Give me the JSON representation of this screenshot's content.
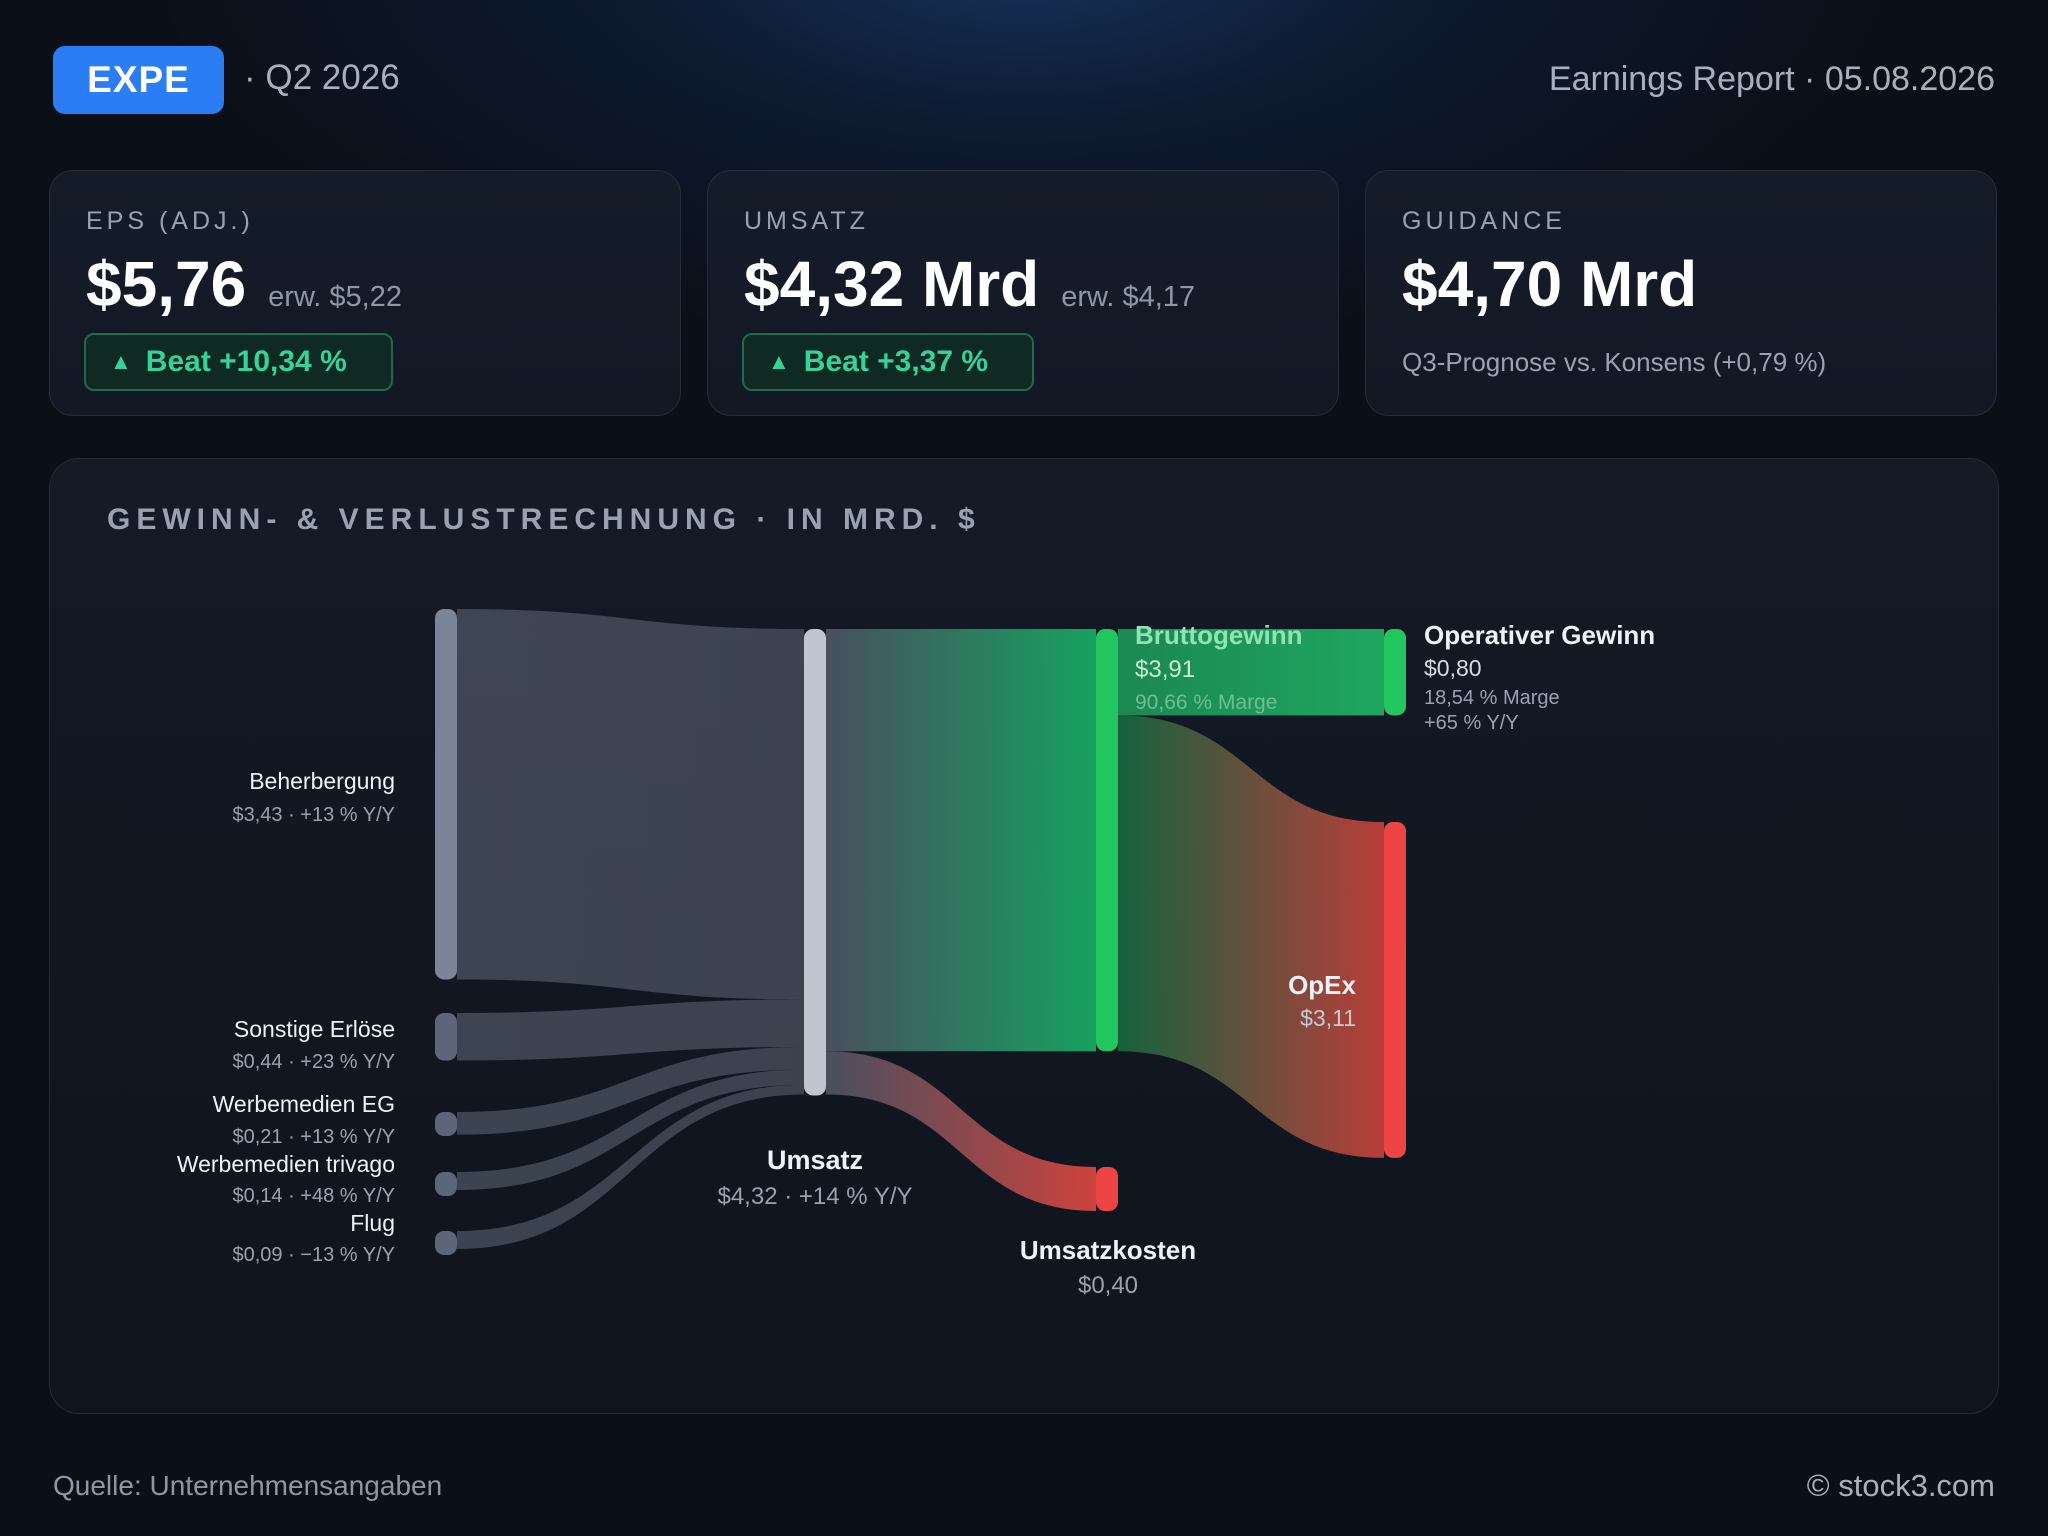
{
  "header": {
    "ticker": "EXPE",
    "quarter": "· Q2 2026",
    "report": "Earnings Report · 05.08.2026"
  },
  "cards": {
    "eps": {
      "label": "EPS (ADJ.)",
      "value": "$5,76",
      "expected": "erw. $5,22",
      "badge": "Beat +10,34 %"
    },
    "revenue": {
      "label": "UMSATZ",
      "value": "$4,32 Mrd",
      "expected": "erw. $4,17",
      "badge": "Beat +3,37 %"
    },
    "guidance": {
      "label": "GUIDANCE",
      "value": "$4,70 Mrd",
      "sub": "Q3-Prognose vs. Konsens (+0,79 %)"
    }
  },
  "chart_data": {
    "type": "sankey",
    "title": "GEWINN- & VERLUSTRECHNUNG · IN MRD. $",
    "nodes": [
      {
        "id": "beherbergung",
        "name": "Beherbergung",
        "value": 3.43,
        "value_label": "$3,43",
        "detail": "+13 % Y/Y",
        "color": "#7b8598"
      },
      {
        "id": "sonstige",
        "name": "Sonstige Erlöse",
        "value": 0.44,
        "value_label": "$0,44",
        "detail": "+23 % Y/Y",
        "color": "#5d6678"
      },
      {
        "id": "werbeeg",
        "name": "Werbemedien EG",
        "value": 0.21,
        "value_label": "$0,21",
        "detail": "+13 % Y/Y",
        "color": "#5d6678"
      },
      {
        "id": "trivago",
        "name": "Werbemedien trivago",
        "value": 0.14,
        "value_label": "$0,14",
        "detail": "+48 % Y/Y",
        "color": "#5d6678"
      },
      {
        "id": "flug",
        "name": "Flug",
        "value": 0.09,
        "value_label": "$0,09",
        "detail": "−13 % Y/Y",
        "color": "#5d6678"
      },
      {
        "id": "umsatz",
        "name": "Umsatz",
        "value": 4.32,
        "value_label": "$4,32",
        "detail": "+14 % Y/Y",
        "color": "#c2c5cf"
      },
      {
        "id": "brutto",
        "name": "Bruttogewinn",
        "value": 3.91,
        "value_label": "$3,91",
        "detail": "90,66 % Marge",
        "color": "#22c55e"
      },
      {
        "id": "kosten",
        "name": "Umsatzkosten",
        "value": 0.4,
        "value_label": "$0,40",
        "color": "#ef4444"
      },
      {
        "id": "opgewinn",
        "name": "Operativer Gewinn",
        "value": 0.8,
        "value_label": "$0,80",
        "detail": "18,54 % Marge",
        "detail2": "+65 % Y/Y",
        "color": "#22c55e"
      },
      {
        "id": "opex",
        "name": "OpEx",
        "value": 3.11,
        "value_label": "$3,11",
        "color": "#ef4444"
      }
    ],
    "links": [
      {
        "source": "beherbergung",
        "target": "umsatz",
        "value": 3.43
      },
      {
        "source": "sonstige",
        "target": "umsatz",
        "value": 0.44
      },
      {
        "source": "werbeeg",
        "target": "umsatz",
        "value": 0.21
      },
      {
        "source": "trivago",
        "target": "umsatz",
        "value": 0.14
      },
      {
        "source": "flug",
        "target": "umsatz",
        "value": 0.09
      },
      {
        "source": "umsatz",
        "target": "brutto",
        "value": 3.91
      },
      {
        "source": "umsatz",
        "target": "kosten",
        "value": 0.4
      },
      {
        "source": "brutto",
        "target": "opgewinn",
        "value": 0.8
      },
      {
        "source": "brutto",
        "target": "opex",
        "value": 3.11
      }
    ]
  },
  "footer": {
    "source": "Quelle: Unternehmensangaben",
    "copyright": "© stock3.com"
  }
}
